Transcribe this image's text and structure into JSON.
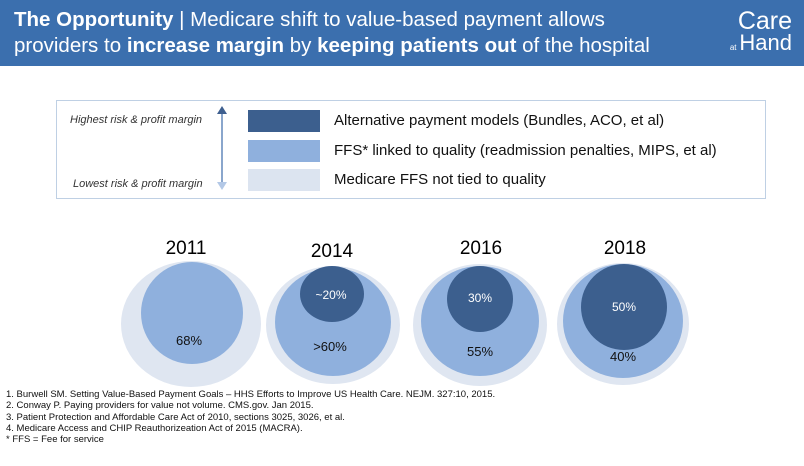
{
  "header": {
    "title_bold": "The Opportunity",
    "title_sep": " | ",
    "line1_rest": "Medicare shift to value-based payment allows",
    "line2_a": "providers to ",
    "line2_b": "increase margin",
    "line2_c": " by ",
    "line2_d": "keeping patients out",
    "line2_e": " of the hospital"
  },
  "logo": {
    "line1": "Care",
    "at": "at",
    "line2": "Hand"
  },
  "legend": {
    "risk_high": "Highest risk & profit margin",
    "risk_low": "Lowest risk & profit margin",
    "items": [
      {
        "label": "Alternative payment models (Bundles, ACO, et al)",
        "color": "#3c5f8e"
      },
      {
        "label": "FFS* linked to quality (readmission penalties, MIPS, et al)",
        "color": "#8fb0dd"
      },
      {
        "label": "Medicare FFS not tied to quality",
        "color": "#dce4f0"
      }
    ]
  },
  "years": [
    {
      "year": "2011",
      "apm": "",
      "ffs_quality": "68%"
    },
    {
      "year": "2014",
      "apm": "~20%",
      "ffs_quality": ">60%"
    },
    {
      "year": "2016",
      "apm": "30%",
      "ffs_quality": "55%"
    },
    {
      "year": "2018",
      "apm": "50%",
      "ffs_quality": "40%"
    }
  ],
  "references": [
    "1. Burwell SM. Setting Value-Based Payment Goals – HHS Efforts to Improve US Health Care. NEJM. 327:10, 2015.",
    "2. Conway P. Paying providers for value not volume. CMS.gov. Jan 2015.",
    "3. Patient Protection and Affordable Care Act of 2010, sections 3025, 3026, et al.",
    "4. Medicare Access and CHIP Reauthorizeation Act of 2015 (MACRA).",
    "* FFS = Fee for service"
  ]
}
